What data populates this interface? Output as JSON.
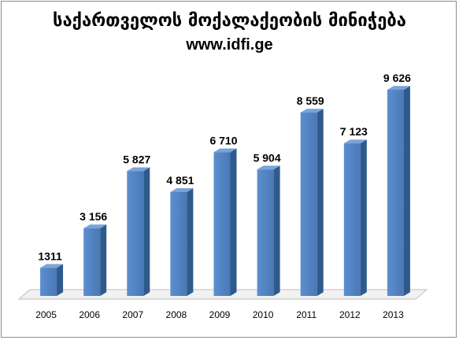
{
  "chart_data": {
    "type": "bar",
    "title": "საქართველოს მოქალაქეობის მინიჭება",
    "subtitle": "www.idfi.ge",
    "xlabel": "",
    "ylabel": "",
    "categories": [
      "2005",
      "2006",
      "2007",
      "2008",
      "2009",
      "2010",
      "2011",
      "2012",
      "2013"
    ],
    "values": [
      1311,
      3156,
      5827,
      4851,
      6710,
      5904,
      8559,
      7123,
      9626
    ],
    "value_labels": [
      "1311",
      "3 156",
      "5 827",
      "4 851",
      "6 710",
      "5 904",
      "8 559",
      "7 123",
      "9 626"
    ],
    "ylim": [
      0,
      10000
    ],
    "grid": false,
    "legend": "none",
    "bar_color": "#4f81bd"
  }
}
